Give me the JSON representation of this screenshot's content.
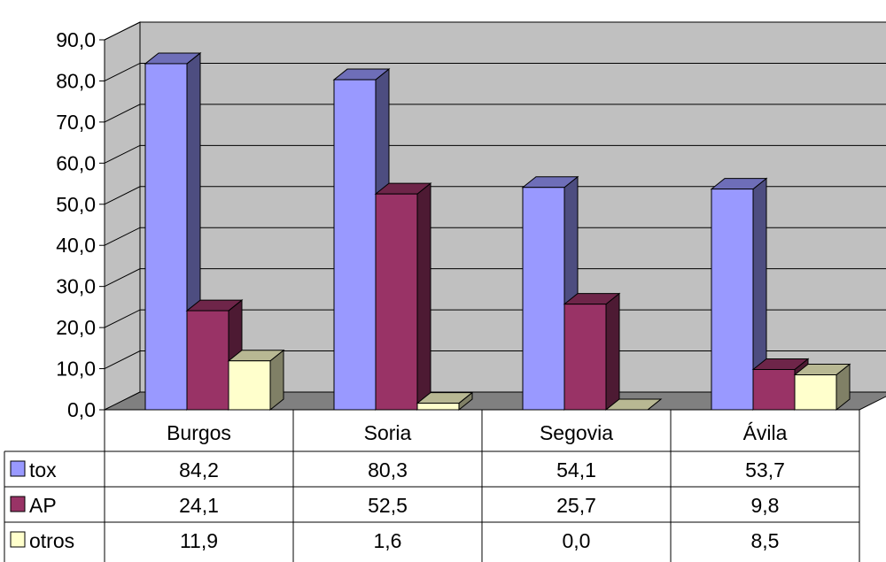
{
  "chart_data": {
    "type": "bar",
    "three_d": true,
    "categories": [
      "Burgos",
      "Soria",
      "Segovia",
      "Ávila"
    ],
    "series": [
      {
        "name": "tox",
        "color": "#9999ff",
        "values": [
          84.2,
          80.3,
          54.1,
          53.7
        ],
        "labels": [
          "84,2",
          "80,3",
          "54,1",
          "53,7"
        ]
      },
      {
        "name": "AP",
        "color": "#993366",
        "values": [
          24.1,
          52.5,
          25.7,
          9.8
        ],
        "labels": [
          "24,1",
          "52,5",
          "25,7",
          "9,8"
        ]
      },
      {
        "name": "otros",
        "color": "#ffffcc",
        "values": [
          11.9,
          1.6,
          0.0,
          8.5
        ],
        "labels": [
          "11,9",
          "1,6",
          "0,0",
          "8,5"
        ]
      }
    ],
    "yticks": [
      "0,0",
      "10,0",
      "20,0",
      "30,0",
      "40,0",
      "50,0",
      "60,0",
      "70,0",
      "80,0",
      "90,0"
    ],
    "ylim": [
      0,
      90
    ],
    "grid": true,
    "legend": "data-table",
    "wall_color": "#c0c0c0",
    "floor_color": "#808080"
  }
}
